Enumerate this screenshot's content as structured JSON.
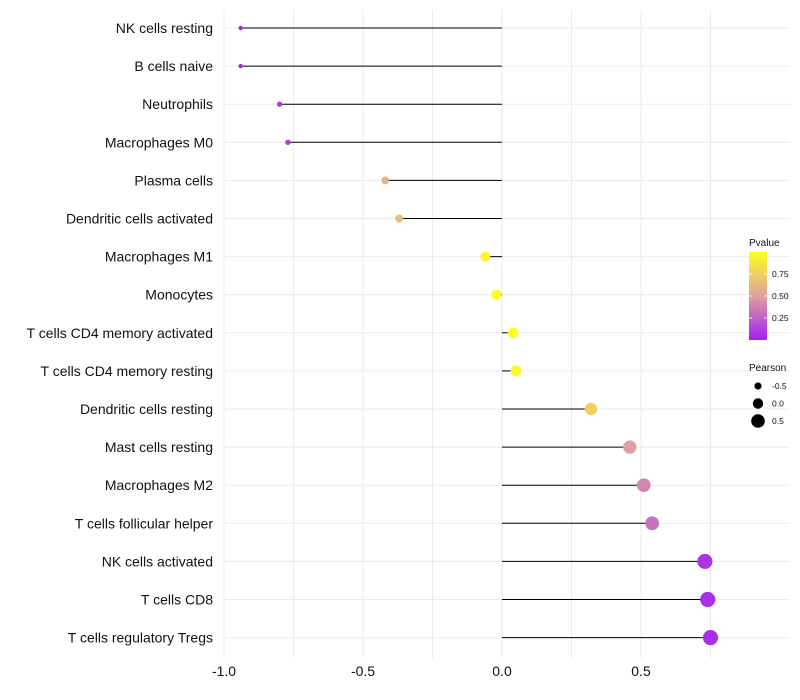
{
  "chart_data": {
    "type": "lollipop",
    "title": "",
    "xlabel": "",
    "ylabel": "",
    "xlim": [
      -1.05,
      0.82
    ],
    "x_ticks": [
      -1.0,
      -0.5,
      0.0,
      0.5
    ],
    "x_tick_labels": [
      "-1.0",
      "-0.5",
      "0.0",
      "0.5"
    ],
    "grid": true,
    "categories": [
      "NK cells resting",
      "B cells naive",
      "Neutrophils",
      "Macrophages M0",
      "Plasma cells",
      "Dendritic cells activated",
      "Macrophages M1",
      "Monocytes",
      "T cells CD4 memory activated",
      "T cells CD4 memory resting",
      "Dendritic cells resting",
      "Mast cells resting",
      "Macrophages M2",
      "T cells follicular helper",
      "NK cells activated",
      "T cells CD8",
      "T cells regulatory  Tregs"
    ],
    "pearson": [
      -0.94,
      -0.94,
      -0.8,
      -0.77,
      -0.42,
      -0.37,
      -0.06,
      -0.02,
      0.04,
      0.05,
      0.32,
      0.46,
      0.51,
      0.54,
      0.73,
      0.74,
      0.75
    ],
    "pvalue": [
      0.02,
      0.02,
      0.1,
      0.12,
      0.6,
      0.65,
      0.96,
      0.99,
      0.98,
      0.97,
      0.75,
      0.5,
      0.4,
      0.32,
      0.08,
      0.07,
      0.06
    ],
    "legend_color": {
      "title": "Pvalue",
      "ticks": [
        0.25,
        0.5,
        0.75
      ],
      "tick_labels": [
        "0.25",
        "0.50",
        "0.75"
      ],
      "range": [
        0.0,
        1.0
      ],
      "low_color": "#a020f0",
      "mid_color": "#e0a0a0",
      "high_color": "#ffff20"
    },
    "legend_size": {
      "title": "Pearson",
      "values": [
        -0.5,
        0.0,
        0.5
      ],
      "labels": [
        "-0.5",
        "0.0",
        "0.5"
      ]
    }
  }
}
